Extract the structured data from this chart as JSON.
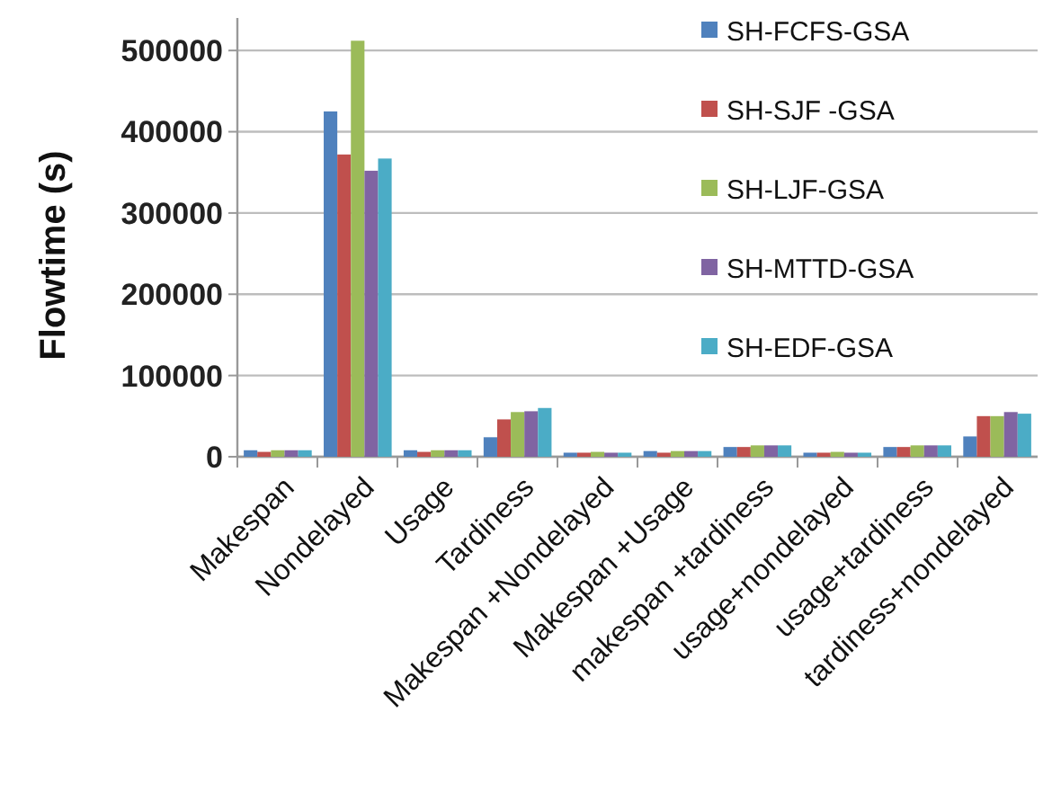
{
  "chart_data": {
    "type": "bar",
    "ylabel": "Flowtime (s)",
    "categories": [
      "Makespan",
      "Nondelayed",
      "Usage",
      "Tardiness",
      "Makespan +Nondelayed",
      "Makespan +Usage",
      "makespan +tardiness",
      "usage+nondelayed",
      "usage+tardiness",
      "tardiness+nondelayed"
    ],
    "series": [
      {
        "name": "SH-FCFS-GSA",
        "color": "#4f81bd",
        "values": [
          8000,
          425000,
          8000,
          24000,
          5000,
          7000,
          12000,
          5000,
          12000,
          25000
        ]
      },
      {
        "name": "SH-SJF -GSA",
        "color": "#c0504d",
        "values": [
          6000,
          372000,
          6000,
          46000,
          5000,
          5000,
          12000,
          5000,
          12000,
          50000
        ]
      },
      {
        "name": "SH-LJF-GSA",
        "color": "#9bbb59",
        "values": [
          8000,
          512000,
          8000,
          55000,
          6000,
          7000,
          14000,
          6000,
          14000,
          50000
        ]
      },
      {
        "name": "SH-MTTD-GSA",
        "color": "#8064a2",
        "values": [
          8000,
          352000,
          8000,
          56000,
          5000,
          7000,
          14000,
          5000,
          14000,
          55000
        ]
      },
      {
        "name": "SH-EDF-GSA",
        "color": "#4bacc6",
        "values": [
          8000,
          367000,
          8000,
          60000,
          5000,
          7000,
          14000,
          5000,
          14000,
          53000
        ]
      }
    ],
    "ylim": [
      0,
      540000
    ],
    "yticks": [
      0,
      100000,
      200000,
      300000,
      400000,
      500000
    ],
    "grid": "y",
    "legend": "top right"
  }
}
